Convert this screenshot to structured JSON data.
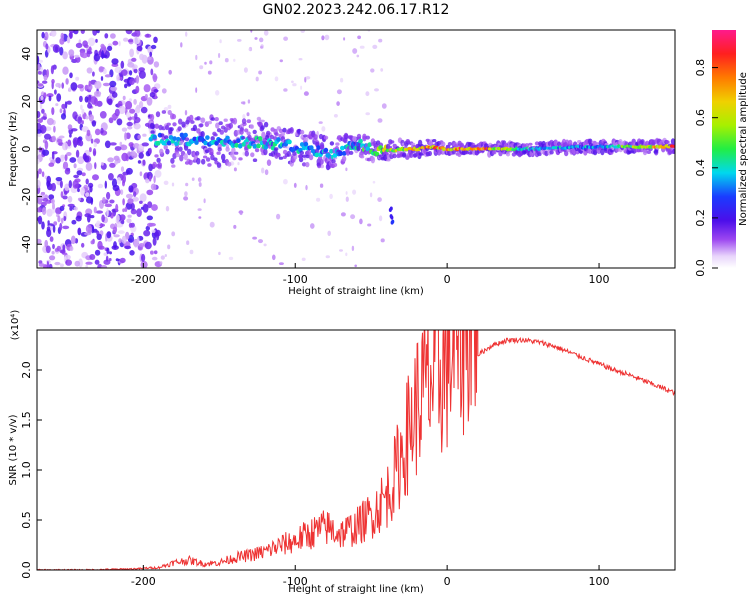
{
  "title": "GN02.2023.242.06.17.R12",
  "chart_data": [
    {
      "type": "heatmap",
      "xlabel": "Height of straight line (km)",
      "ylabel": "Frequency (Hz)",
      "xlim": [
        -270,
        150
      ],
      "ylim": [
        -50,
        50
      ],
      "xticks": [
        -200,
        -100,
        0,
        100
      ],
      "yticks": [
        -40,
        -20,
        0,
        20,
        40
      ],
      "colorbar": {
        "label": "Normalized spectral amplitude",
        "range": [
          0,
          0.95
        ],
        "ticks": [
          0.0,
          0.2,
          0.4,
          0.6,
          0.8
        ]
      },
      "signal_trace": {
        "x": [
          -190,
          -170,
          -150,
          -130,
          -110,
          -90,
          -75,
          -60,
          -50,
          -40,
          -30,
          -20,
          -10,
          0,
          20,
          50,
          100,
          150
        ],
        "frequency_hz": [
          4,
          4,
          3,
          3,
          2,
          0,
          -2,
          2,
          0,
          -1,
          0,
          0,
          1,
          0,
          0,
          0,
          1,
          1
        ],
        "amplitude": [
          0.45,
          0.4,
          0.4,
          0.45,
          0.45,
          0.4,
          0.4,
          0.45,
          0.55,
          0.65,
          0.7,
          0.75,
          0.8,
          0.85,
          0.88,
          0.45,
          0.4,
          0.9
        ]
      },
      "noise_region_x": [
        -270,
        -190
      ]
    },
    {
      "type": "line",
      "xlabel": "Height of straight line (km)",
      "ylabel": "SNR (10 * v/v)",
      "y_multiplier": "(x10⁴)",
      "xlim": [
        -270,
        150
      ],
      "ylim": [
        0,
        2.4
      ],
      "xticks": [
        -200,
        -100,
        0,
        100
      ],
      "yticks": [
        "0.0",
        "0.5",
        "1.0",
        "1.5",
        "2.0"
      ],
      "series": [
        {
          "color": "#ee3333",
          "x": [
            -270,
            -240,
            -210,
            -190,
            -180,
            -170,
            -160,
            -150,
            -140,
            -130,
            -120,
            -110,
            -100,
            -90,
            -80,
            -70,
            -60,
            -50,
            -40,
            -35,
            -30,
            -25,
            -20,
            -15,
            -10,
            -5,
            0,
            5,
            10,
            15,
            20,
            30,
            40,
            50,
            60,
            70,
            80,
            90,
            100,
            110,
            120,
            130,
            140,
            150
          ],
          "values": [
            0.0,
            0.0,
            0.01,
            0.02,
            0.06,
            0.08,
            0.05,
            0.06,
            0.1,
            0.12,
            0.15,
            0.2,
            0.24,
            0.3,
            0.35,
            0.3,
            0.35,
            0.45,
            0.6,
            0.75,
            0.95,
            1.15,
            1.35,
            1.5,
            1.55,
            1.6,
            1.7,
            1.85,
            1.95,
            2.05,
            2.15,
            2.25,
            2.3,
            2.3,
            2.28,
            2.24,
            2.18,
            2.12,
            2.06,
            2.0,
            1.95,
            1.89,
            1.83,
            1.77
          ]
        }
      ]
    }
  ]
}
